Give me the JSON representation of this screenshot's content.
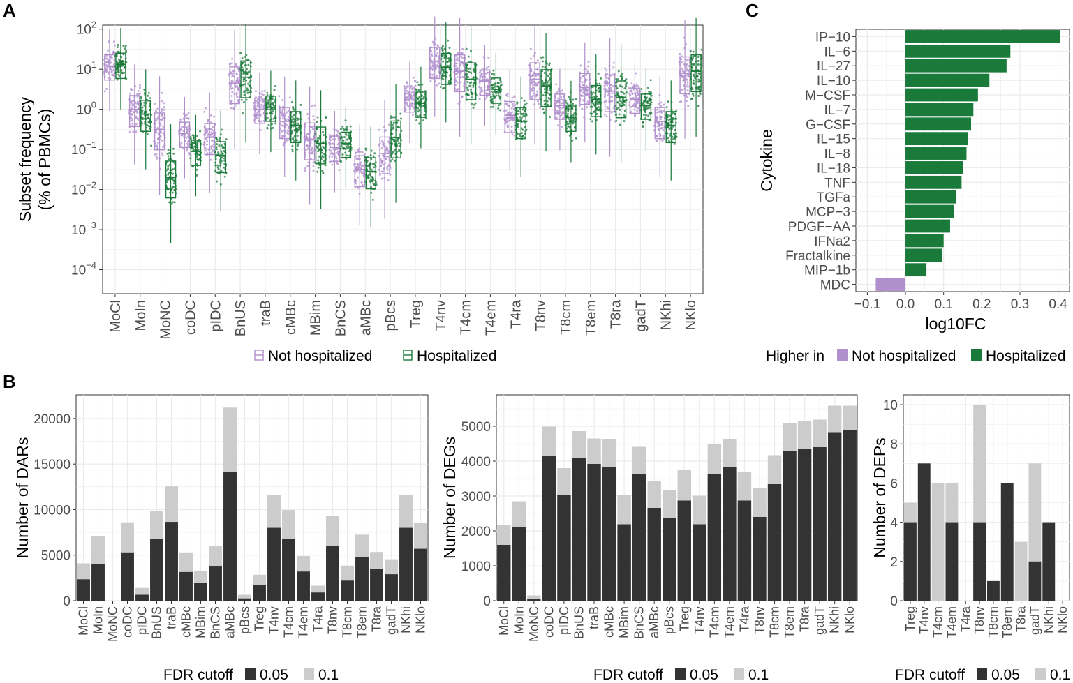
{
  "panels": {
    "a": "A",
    "b": "B",
    "c": "C"
  },
  "colors": {
    "purple": "#b08fcc",
    "green": "#1a7a3a",
    "dark": "#333333",
    "light": "#cccccc",
    "grid": "#ebebeb"
  },
  "chart_data": [
    {
      "id": "A",
      "type": "box",
      "ylabel_line1": "Subset frequency",
      "ylabel_line2": "(% of PBMCs)",
      "yscale": "log10",
      "yticks": [
        {
          "exp": 2,
          "base": "10",
          "sup": "2"
        },
        {
          "exp": 1,
          "base": "10",
          "sup": "1"
        },
        {
          "exp": 0,
          "base": "10",
          "sup": "0"
        },
        {
          "exp": -1,
          "base": "10",
          "sup": "−1"
        },
        {
          "exp": -2,
          "base": "10",
          "sup": "−2"
        },
        {
          "exp": -3,
          "base": "10",
          "sup": "−3"
        },
        {
          "exp": -4,
          "base": "10",
          "sup": "−4"
        }
      ],
      "ylim_log10": [
        -4.6,
        2.1
      ],
      "categories": [
        "MoCl",
        "MoIn",
        "MoNC",
        "coDC",
        "pIDC",
        "BnUS",
        "traB",
        "cMBc",
        "MBim",
        "BnCS",
        "aMBc",
        "pBcs",
        "Treg",
        "T4nv",
        "T4cm",
        "T4em",
        "T4ra",
        "T8nv",
        "T8cm",
        "T8em",
        "T8ra",
        "gadT",
        "NKhi",
        "NKlo"
      ],
      "series": [
        {
          "name": "Not hospitalized",
          "medians_log10": [
            1.08,
            0.0,
            -0.5,
            -0.6,
            -0.7,
            0.65,
            0.0,
            -0.3,
            -0.75,
            -0.95,
            -1.5,
            -1.1,
            0.28,
            1.2,
            0.95,
            0.7,
            -0.15,
            0.75,
            0.1,
            0.55,
            0.45,
            0.25,
            -0.3,
            0.9
          ]
        },
        {
          "name": "Hospitalized",
          "medians_log10": [
            1.12,
            -0.12,
            -1.7,
            -1.05,
            -1.15,
            0.8,
            0.05,
            -0.4,
            -0.85,
            -0.85,
            -1.55,
            -0.7,
            0.15,
            1.05,
            0.75,
            0.5,
            -0.3,
            0.58,
            -0.2,
            0.25,
            0.3,
            0.1,
            -0.4,
            0.95
          ]
        }
      ],
      "legend": [
        "Not hospitalized",
        "Hospitalized"
      ]
    },
    {
      "id": "C",
      "type": "bar",
      "orientation": "horizontal",
      "ylabel": "Cytokine",
      "xlabel": "log10FC",
      "categories": [
        "IP−10",
        "IL−6",
        "IL−27",
        "IL−10",
        "M−CSF",
        "IL−7",
        "G−CSF",
        "IL−15",
        "IL−8",
        "IL−18",
        "TNF",
        "TGFa",
        "MCP−3",
        "PDGF−AA",
        "IFNa2",
        "Fractalkine",
        "MIP−1b",
        "MDC"
      ],
      "values": [
        0.405,
        0.275,
        0.265,
        0.22,
        0.19,
        0.178,
        0.172,
        0.163,
        0.16,
        0.15,
        0.147,
        0.133,
        0.127,
        0.117,
        0.1,
        0.097,
        0.055,
        -0.078
      ],
      "xlim": [
        -0.13,
        0.43
      ],
      "xticks": [
        {
          "v": -0.1,
          "label": "−0.1"
        },
        {
          "v": 0.0,
          "label": "0.0"
        },
        {
          "v": 0.1,
          "label": "0.1"
        },
        {
          "v": 0.2,
          "label": "0.2"
        },
        {
          "v": 0.3,
          "label": "0.3"
        },
        {
          "v": 0.4,
          "label": "0.4"
        }
      ],
      "legend_title": "Higher in",
      "legend": [
        "Not hospitalized",
        "Hospitalized"
      ]
    },
    {
      "id": "B1",
      "type": "stacked-bar",
      "ylabel": "Number of DARs",
      "categories": [
        "MoCl",
        "MoIn",
        "MoNC",
        "coDC",
        "pIDC",
        "BnUS",
        "traB",
        "cMBc",
        "MBim",
        "BnCS",
        "aMBc",
        "pBcs",
        "Treg",
        "T4nv",
        "T4cm",
        "T4em",
        "T4ra",
        "T8nv",
        "T8cm",
        "T8em",
        "T8ra",
        "gadT",
        "NKhi",
        "NKlo"
      ],
      "fdr_005": [
        2350,
        4050,
        0,
        5300,
        650,
        6800,
        8650,
        3150,
        1950,
        3750,
        14150,
        250,
        1700,
        8000,
        6800,
        3200,
        900,
        6000,
        2200,
        4800,
        3450,
        2900,
        8000,
        5700
      ],
      "fdr_01": [
        4100,
        7050,
        0,
        8600,
        1400,
        9850,
        12550,
        5300,
        3300,
        6000,
        21200,
        650,
        2850,
        11600,
        9950,
        4900,
        1650,
        9300,
        3850,
        7250,
        5350,
        4550,
        11650,
        8500
      ],
      "ylim": [
        0,
        22600
      ],
      "yticks": [
        0,
        5000,
        10000,
        15000,
        20000
      ],
      "legend_title": "FDR cutoff",
      "legend": [
        "0.05",
        "0.1"
      ]
    },
    {
      "id": "B2",
      "type": "stacked-bar",
      "ylabel": "Number of DEGs",
      "categories": [
        "MoCl",
        "MoIn",
        "MoNC",
        "coDC",
        "pIDC",
        "BnUS",
        "traB",
        "cMBc",
        "MBim",
        "BnCS",
        "aMBc",
        "pBcs",
        "Treg",
        "T4nv",
        "T4cm",
        "T4em",
        "T4ra",
        "T8nv",
        "T8cm",
        "T8em",
        "T8ra",
        "gadT",
        "NKhi",
        "NKlo"
      ],
      "fdr_005": [
        1600,
        2120,
        50,
        4150,
        3030,
        4100,
        3920,
        3840,
        2190,
        3630,
        2660,
        2370,
        2870,
        2190,
        3640,
        3830,
        2870,
        2400,
        3340,
        4290,
        4360,
        4400,
        4830,
        4880
      ],
      "fdr_01": [
        2180,
        2850,
        150,
        4990,
        3800,
        4860,
        4650,
        4640,
        3020,
        4410,
        3440,
        3160,
        3760,
        3010,
        4500,
        4640,
        3690,
        3220,
        4170,
        5080,
        5160,
        5190,
        5590,
        5590
      ],
      "ylim": [
        0,
        5900
      ],
      "yticks": [
        0,
        1000,
        2000,
        3000,
        4000,
        5000
      ],
      "legend_title": "FDR cutoff",
      "legend": [
        "0.05",
        "0.1"
      ]
    },
    {
      "id": "B3",
      "type": "stacked-bar",
      "ylabel": "Number of DEPs",
      "categories": [
        "Treg",
        "T4nv",
        "T4cm",
        "T4em",
        "T4ra",
        "T8nv",
        "T8cm",
        "T8em",
        "T8ra",
        "gadT",
        "NKhi",
        "NKlo"
      ],
      "fdr_005": [
        4,
        7,
        0,
        4,
        0,
        4,
        1,
        6,
        0,
        2,
        4,
        0
      ],
      "fdr_01": [
        5,
        7,
        6,
        6,
        0,
        10,
        1,
        6,
        3,
        7,
        4,
        0
      ],
      "ylim": [
        0,
        10.5
      ],
      "yticks": [
        0,
        2,
        4,
        6,
        8,
        10
      ],
      "legend_title": "FDR cutoff",
      "legend": [
        "0.05",
        "0.1"
      ]
    }
  ]
}
